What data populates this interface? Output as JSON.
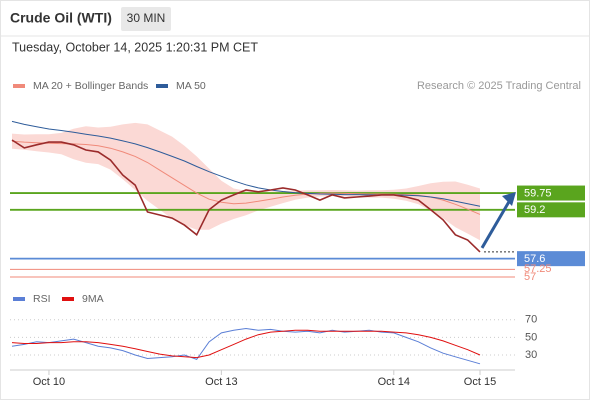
{
  "header": {
    "title": "Crude Oil (WTI)",
    "timeframe": "30 MIN",
    "datetime": "Tuesday, October 14, 2025 1:20:31 PM CET",
    "source": "Research © 2025 Trading Central"
  },
  "chart_data": [
    {
      "type": "line",
      "categories": [
        null,
        null,
        null,
        "Oct 10",
        null,
        null,
        null,
        null,
        null,
        null,
        null,
        null,
        null,
        null,
        null,
        null,
        null,
        "Oct 13",
        null,
        null,
        null,
        null,
        null,
        null,
        null,
        null,
        null,
        null,
        null,
        null,
        null,
        "Oct 14",
        null,
        null,
        null,
        null,
        null,
        null,
        "Oct 15"
      ],
      "close": {
        "color": "#9b2b2b",
        "values": [
          61.49,
          61.23,
          61.33,
          61.42,
          61.42,
          61.33,
          61.16,
          61.1,
          60.83,
          60.34,
          60.01,
          59.13,
          59.03,
          58.93,
          58.7,
          58.38,
          59.2,
          59.52,
          59.69,
          59.85,
          59.79,
          59.85,
          59.92,
          59.85,
          59.69,
          59.52,
          59.69,
          59.59,
          59.62,
          59.65,
          59.69,
          59.69,
          59.62,
          59.52,
          59.2,
          58.87,
          58.38,
          58.21,
          57.82
        ]
      },
      "series": [
        {
          "name": "MA 20 + Bollinger Bands",
          "color": "#f08a7a",
          "values": [
            61.45,
            61.42,
            61.4,
            61.38,
            61.37,
            61.36,
            61.34,
            61.3,
            61.22,
            61.1,
            60.95,
            60.75,
            60.5,
            60.25,
            60.0,
            59.75,
            59.55,
            59.45,
            59.4,
            59.42,
            59.48,
            59.55,
            59.62,
            59.68,
            59.72,
            59.74,
            59.75,
            59.74,
            59.73,
            59.72,
            59.72,
            59.71,
            59.7,
            59.68,
            59.62,
            59.52,
            59.38,
            59.22,
            59.05
          ]
        },
        {
          "name": "MA 50",
          "color": "#2e5c9a",
          "values": [
            62.1,
            62.0,
            61.92,
            61.85,
            61.8,
            61.74,
            61.68,
            61.62,
            61.55,
            61.46,
            61.36,
            61.24,
            61.1,
            60.95,
            60.8,
            60.62,
            60.45,
            60.3,
            60.15,
            60.02,
            59.92,
            59.85,
            59.8,
            59.76,
            59.74,
            59.72,
            59.71,
            59.7,
            59.7,
            59.69,
            59.69,
            59.69,
            59.68,
            59.66,
            59.62,
            59.56,
            59.48,
            59.4,
            59.32
          ]
        }
      ],
      "bands": {
        "color": "#fbd9d5",
        "upper": [
          61.7,
          61.67,
          61.68,
          61.68,
          61.72,
          61.86,
          61.94,
          61.9,
          61.92,
          62.0,
          62.05,
          62.0,
          61.8,
          61.6,
          61.3,
          60.95,
          60.55,
          60.15,
          59.9,
          59.82,
          59.78,
          59.8,
          59.82,
          59.83,
          59.84,
          59.84,
          59.85,
          59.84,
          59.83,
          59.84,
          59.84,
          59.86,
          59.9,
          59.98,
          60.07,
          60.12,
          60.13,
          60.02,
          59.9
        ],
        "lower": [
          61.2,
          61.17,
          61.12,
          61.08,
          61.02,
          60.86,
          60.74,
          60.7,
          60.52,
          60.2,
          59.85,
          59.5,
          59.2,
          58.9,
          58.7,
          58.55,
          58.55,
          58.75,
          58.9,
          59.02,
          59.18,
          59.3,
          59.42,
          59.53,
          59.6,
          59.64,
          59.65,
          59.64,
          59.63,
          59.6,
          59.6,
          59.56,
          59.5,
          59.38,
          59.17,
          58.92,
          58.63,
          58.42,
          58.2
        ]
      },
      "levels": [
        {
          "value": 59.75,
          "color": "#5aa51e"
        },
        {
          "value": 59.2,
          "color": "#5aa51e"
        },
        {
          "value": 57.6,
          "color": "#5b8bd6"
        },
        {
          "value": 57.25,
          "color": "#f08a7a"
        },
        {
          "value": 57.0,
          "color": "#f08a7a"
        }
      ],
      "ylim": [
        56.9,
        62.8
      ]
    },
    {
      "type": "line",
      "series": [
        {
          "name": "RSI",
          "color": "#5b7fd6",
          "values": [
            40,
            42,
            45,
            44,
            46,
            48,
            44,
            40,
            38,
            35,
            30,
            26,
            27,
            28,
            30,
            25,
            45,
            55,
            58,
            60,
            58,
            59,
            57,
            56,
            57,
            55,
            58,
            56,
            57,
            58,
            56,
            55,
            50,
            45,
            38,
            32,
            28,
            24,
            20
          ]
        },
        {
          "name": "9MA",
          "color": "#e01010",
          "values": [
            44,
            43,
            43,
            44,
            44,
            45,
            45,
            44,
            42,
            40,
            37,
            34,
            31,
            29,
            28,
            27,
            30,
            36,
            42,
            48,
            53,
            56,
            57,
            58,
            58,
            57,
            57,
            57,
            57,
            57,
            57,
            56,
            55,
            53,
            50,
            46,
            41,
            36,
            30
          ]
        }
      ],
      "ylim": [
        13,
        81
      ],
      "yticks": [
        30,
        50,
        70
      ],
      "grid": true
    }
  ]
}
